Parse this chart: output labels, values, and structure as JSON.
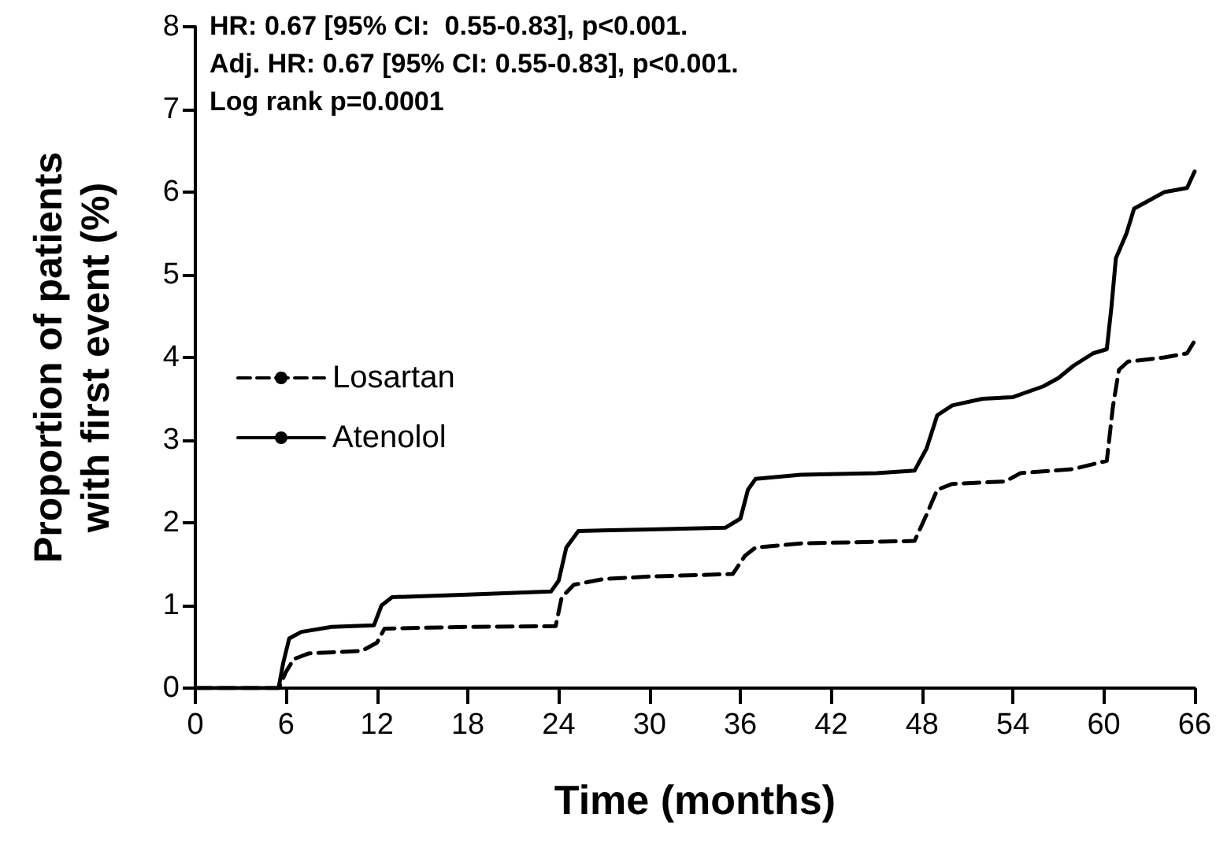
{
  "chart_data": {
    "type": "step",
    "xlabel": "Time (months)",
    "ylabel": "Proportion of patients\nwith first event (%)",
    "annotations": [
      "HR: 0.67 [95% CI:  0.55-0.83], p<0.001.",
      "Adj. HR: 0.67 [95% CI: 0.55-0.83], p<0.001.",
      "Log rank p=0.0001"
    ],
    "xlim": [
      0,
      66
    ],
    "xticks": [
      0,
      6,
      12,
      18,
      24,
      30,
      36,
      42,
      48,
      54,
      60,
      66
    ],
    "ylim": [
      0,
      8
    ],
    "yticks": [
      0,
      1,
      2,
      3,
      4,
      5,
      6,
      7,
      8
    ],
    "grid": false,
    "legend": "left",
    "marker": "none",
    "series": [
      {
        "name": "Losartan",
        "color": "#000000",
        "line_style": "dashed",
        "x": [
          0,
          5.5,
          6,
          6.5,
          7.5,
          11,
          12,
          12.5,
          18,
          23.8,
          24.2,
          25,
          27,
          30,
          35.5,
          36.3,
          37,
          40,
          47.5,
          48.3,
          49,
          50,
          53.5,
          54.5,
          58,
          60.2,
          60.6,
          61,
          61.6,
          64,
          65.5,
          66
        ],
        "values": [
          0,
          0,
          0.2,
          0.35,
          0.42,
          0.45,
          0.55,
          0.72,
          0.74,
          0.75,
          1.1,
          1.25,
          1.32,
          1.35,
          1.38,
          1.6,
          1.7,
          1.75,
          1.78,
          2.1,
          2.4,
          2.47,
          2.5,
          2.6,
          2.65,
          2.75,
          3.4,
          3.85,
          3.95,
          4.0,
          4.05,
          4.2
        ]
      },
      {
        "name": "Atenolol",
        "color": "#000000",
        "line_style": "solid",
        "x": [
          0,
          5.5,
          5.8,
          6.2,
          7,
          9,
          11.8,
          12.3,
          13,
          18,
          23.5,
          24,
          24.5,
          25.3,
          30,
          35,
          36,
          36.5,
          37,
          40,
          45,
          47.5,
          48.3,
          49,
          50,
          52,
          54,
          56,
          57,
          58,
          59.3,
          60.2,
          60.5,
          60.8,
          61.5,
          62,
          63,
          64,
          65.5,
          66
        ],
        "values": [
          0,
          0,
          0.3,
          0.6,
          0.68,
          0.74,
          0.76,
          1.0,
          1.1,
          1.13,
          1.17,
          1.3,
          1.7,
          1.9,
          1.92,
          1.94,
          2.05,
          2.4,
          2.53,
          2.58,
          2.6,
          2.63,
          2.9,
          3.3,
          3.42,
          3.5,
          3.52,
          3.65,
          3.75,
          3.9,
          4.05,
          4.1,
          4.6,
          5.2,
          5.5,
          5.8,
          5.9,
          6.0,
          6.05,
          6.25
        ]
      }
    ]
  }
}
